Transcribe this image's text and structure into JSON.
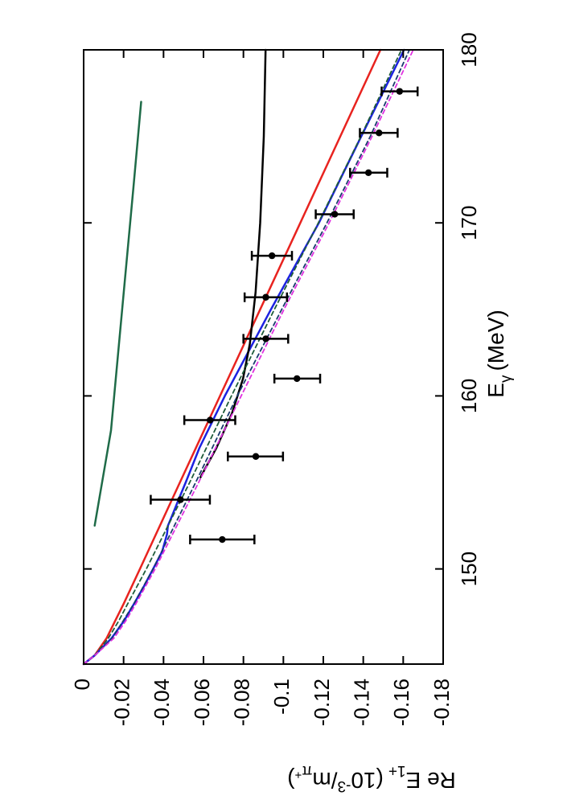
{
  "chart_data": {
    "type": "line",
    "orientation": "rotated-90-clockwise",
    "xlabel": "E_γ (MeV)",
    "xlabel_main": "E",
    "xlabel_sub": "γ",
    "xlabel_unit": "(MeV)",
    "ylabel": "Re E_{1+} (10^{-3}/m_{π+})",
    "ylabel_main": "Re E",
    "ylabel_sub": "1+",
    "ylabel_open": "(10",
    "ylabel_exp": "-3",
    "ylabel_div": "/m",
    "ylabel_pi": "π",
    "ylabel_plus": "+",
    "ylabel_close": ")",
    "xlim": [
      144.5,
      180
    ],
    "ylim": [
      -0.18,
      0
    ],
    "x_ticks": [
      {
        "value": 150,
        "label": "150"
      },
      {
        "value": 160,
        "label": "160"
      },
      {
        "value": 170,
        "label": "170"
      },
      {
        "value": 180,
        "label": "180"
      }
    ],
    "y_ticks": [
      {
        "value": 0,
        "label": "0"
      },
      {
        "value": -0.02,
        "label": "-0.02"
      },
      {
        "value": -0.04,
        "label": "-0.04"
      },
      {
        "value": -0.06,
        "label": "-0.06"
      },
      {
        "value": -0.08,
        "label": "-0.08"
      },
      {
        "value": -0.1,
        "label": "-0.1"
      },
      {
        "value": -0.12,
        "label": "-0.12"
      },
      {
        "value": -0.14,
        "label": "-0.14"
      },
      {
        "value": -0.16,
        "label": "-0.16"
      },
      {
        "value": -0.18,
        "label": "-0.18"
      }
    ],
    "grid": false,
    "legend": "none",
    "series": [
      {
        "color": "#1f6b48",
        "style": "solid",
        "width": 2.5,
        "x": [
          152.5,
          158,
          165,
          172,
          177
        ],
        "y": [
          -0.0055,
          -0.0137,
          -0.0193,
          -0.0249,
          -0.0288
        ]
      },
      {
        "color": "#e8231f",
        "style": "solid",
        "width": 2.5,
        "x": [
          144.5,
          145,
          146,
          147,
          148,
          150,
          155,
          160,
          165,
          170,
          175,
          180
        ],
        "y": [
          0,
          -0.0055,
          -0.0115,
          -0.0158,
          -0.0201,
          -0.0282,
          -0.0482,
          -0.0683,
          -0.0884,
          -0.1085,
          -0.1285,
          -0.1486
        ]
      },
      {
        "color": "#1c22e0",
        "style": "solid",
        "width": 2.5,
        "x": [
          144.5,
          145,
          146,
          147,
          148,
          149,
          150,
          151,
          152,
          152.5,
          153,
          154,
          155,
          157,
          160,
          165,
          170,
          175,
          180
        ],
        "y": [
          0,
          -0.0055,
          -0.014,
          -0.0202,
          -0.0253,
          -0.0302,
          -0.0348,
          -0.0393,
          -0.0417,
          -0.0422,
          -0.044,
          -0.0475,
          -0.0511,
          -0.058,
          -0.0707,
          -0.0938,
          -0.1178,
          -0.139,
          -0.1604
        ]
      },
      {
        "color": "#000000",
        "style": "solid",
        "width": 2.5,
        "x": [
          155.3,
          157,
          159,
          161,
          163,
          166,
          170,
          175,
          180
        ],
        "y": [
          -0.0585,
          -0.0665,
          -0.0743,
          -0.0798,
          -0.0832,
          -0.0861,
          -0.0884,
          -0.0902,
          -0.0911
        ]
      },
      {
        "color": "#1f5c3a",
        "style": "dashed",
        "width": 1.8,
        "x": [
          144.5,
          145,
          146,
          147,
          148,
          150,
          155,
          160,
          165,
          170,
          175,
          180
        ],
        "y": [
          0,
          -0.0055,
          -0.0124,
          -0.0176,
          -0.0221,
          -0.0314,
          -0.0531,
          -0.074,
          -0.0955,
          -0.1175,
          -0.1388,
          -0.1591
        ]
      },
      {
        "color": "#1a3a6e",
        "style": "dashed",
        "width": 1.8,
        "x": [
          144.5,
          145,
          146,
          147,
          148,
          150,
          155,
          160,
          165,
          170,
          175,
          180
        ],
        "y": [
          0,
          -0.0055,
          -0.0143,
          -0.0198,
          -0.0252,
          -0.0348,
          -0.0561,
          -0.0769,
          -0.0992,
          -0.1218,
          -0.1435,
          -0.1631
        ]
      },
      {
        "color": "#e030e0",
        "style": "dashed",
        "width": 1.8,
        "x": [
          144.5,
          145,
          146,
          147,
          148,
          150,
          155,
          160,
          165,
          170,
          175,
          180
        ],
        "y": [
          0,
          -0.0055,
          -0.0152,
          -0.0211,
          -0.0262,
          -0.0358,
          -0.0576,
          -0.0789,
          -0.1003,
          -0.1229,
          -0.1444,
          -0.165
        ]
      }
    ],
    "data_points": [
      {
        "x": 151.7,
        "y": -0.0694,
        "ylo": -0.0533,
        "yhi": -0.0855
      },
      {
        "x": 154.0,
        "y": -0.0485,
        "ylo": -0.0336,
        "yhi": -0.0632
      },
      {
        "x": 156.5,
        "y": -0.0862,
        "ylo": -0.0722,
        "yhi": -0.0998
      },
      {
        "x": 158.6,
        "y": -0.0633,
        "ylo": -0.0504,
        "yhi": -0.0759
      },
      {
        "x": 161.0,
        "y": -0.1068,
        "ylo": -0.0955,
        "yhi": -0.1184
      },
      {
        "x": 163.3,
        "y": -0.0912,
        "ylo": -0.08,
        "yhi": -0.1024
      },
      {
        "x": 165.7,
        "y": -0.0912,
        "ylo": -0.0806,
        "yhi": -0.1018
      },
      {
        "x": 168.1,
        "y": -0.0943,
        "ylo": -0.0842,
        "yhi": -0.1043
      },
      {
        "x": 170.5,
        "y": -0.1257,
        "ylo": -0.1162,
        "yhi": -0.1352
      },
      {
        "x": 172.9,
        "y": -0.1426,
        "ylo": -0.1334,
        "yhi": -0.152
      },
      {
        "x": 175.2,
        "y": -0.1479,
        "ylo": -0.1383,
        "yhi": -0.1572
      },
      {
        "x": 177.6,
        "y": -0.1582,
        "ylo": -0.1492,
        "yhi": -0.1672
      }
    ]
  }
}
